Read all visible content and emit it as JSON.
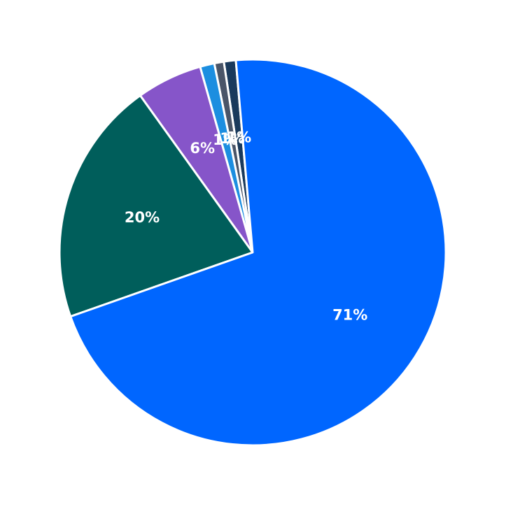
{
  "chart_data": {
    "type": "pie",
    "title": "",
    "slices": [
      {
        "label_text": "1%",
        "value": 1.0,
        "color": "#1a3a5c"
      },
      {
        "label_text": "1%",
        "value": 0.8,
        "color": "#4a5568"
      },
      {
        "label_text": "1%",
        "value": 1.2,
        "color": "#1c8ee0"
      },
      {
        "label_text": "6%",
        "value": 5.5,
        "color": "#8655c9"
      },
      {
        "label_text": "20%",
        "value": 20.5,
        "color": "#005e5b"
      },
      {
        "label_text": "71%",
        "value": 71.0,
        "color": "#0066ff"
      }
    ],
    "start_angle_deg": 95,
    "direction": "counterclockwise",
    "legend": "none",
    "background": "#ffffff",
    "edge_color": "#ffffff"
  }
}
